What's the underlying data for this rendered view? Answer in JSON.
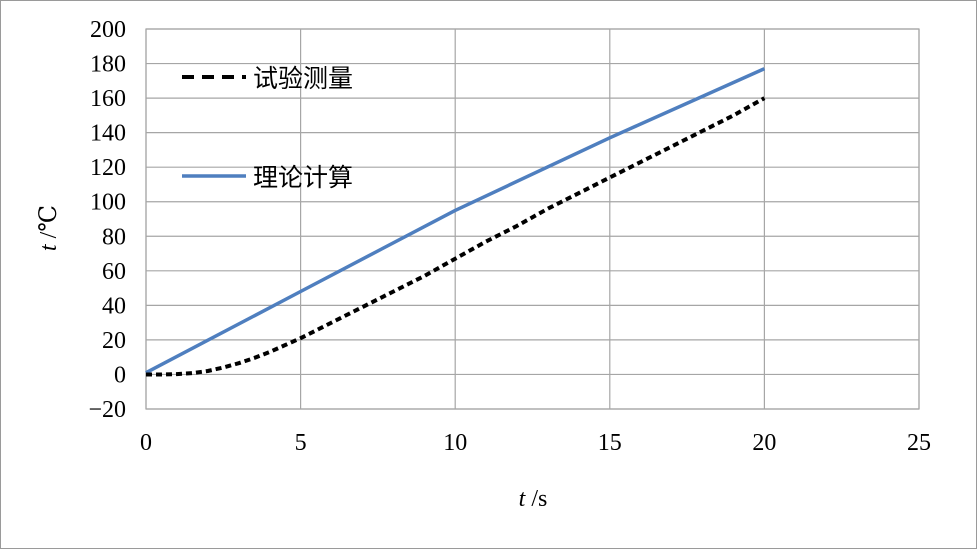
{
  "chart_data": {
    "type": "line",
    "title": "",
    "xlabel": "t /s",
    "xlabel_var": "t",
    "xlabel_unit": " /s",
    "ylabel": "t /℃",
    "ylabel_var": "t",
    "ylabel_unit": " /℃",
    "xlim": [
      0,
      25
    ],
    "ylim": [
      -20,
      200
    ],
    "xticks": [
      0,
      5,
      10,
      15,
      20,
      25
    ],
    "yticks": [
      -20,
      0,
      20,
      40,
      60,
      80,
      100,
      120,
      140,
      160,
      180,
      200
    ],
    "ytick_labels": [
      "−20",
      "0",
      "20",
      "40",
      "60",
      "80",
      "100",
      "120",
      "140",
      "160",
      "180",
      "200"
    ],
    "grid": true,
    "legend_position": "top-left",
    "series": [
      {
        "name": "试验测量",
        "style": "dashed",
        "color": "#000000",
        "x": [
          0,
          0.5,
          1,
          1.5,
          2,
          2.5,
          3,
          3.5,
          4,
          4.5,
          5,
          6,
          7,
          8,
          9,
          10,
          11,
          12,
          13,
          14,
          15,
          16,
          17,
          18,
          19,
          20
        ],
        "y": [
          0,
          0,
          0.2,
          0.8,
          2,
          4,
          6.5,
          9.5,
          13,
          17,
          21,
          30,
          39,
          48,
          57,
          67,
          77,
          86,
          96,
          105,
          114,
          123,
          132,
          141,
          150,
          160
        ]
      },
      {
        "name": "理论计算",
        "style": "solid",
        "color": "#4f7fbf",
        "x": [
          0,
          5,
          10,
          15,
          20
        ],
        "y": [
          1,
          48,
          95,
          137,
          177
        ]
      }
    ]
  }
}
